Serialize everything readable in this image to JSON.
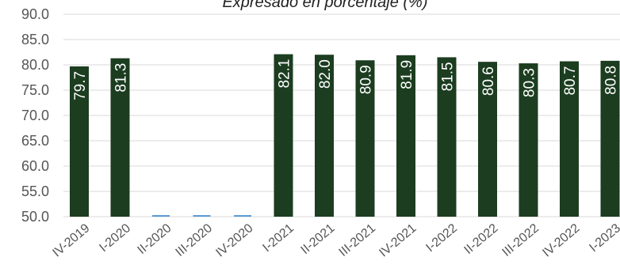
{
  "chart_data": {
    "type": "bar",
    "title": "Expresado en porcentaje (%)",
    "xlabel": "",
    "ylabel": "",
    "ylim": [
      50,
      90
    ],
    "yticks": [
      "50.0",
      "55.0",
      "60.0",
      "65.0",
      "70.0",
      "75.0",
      "80.0",
      "85.0",
      "90.0"
    ],
    "grid": true,
    "categories": [
      "IV-2019",
      "I-2020",
      "II-2020",
      "III-2020",
      "IV-2020",
      "I-2021",
      "II-2021",
      "III-2021",
      "IV-2021",
      "I-2022",
      "II-2022",
      "III-2022",
      "IV-2022",
      "I-2023"
    ],
    "values": [
      79.7,
      81.3,
      null,
      null,
      null,
      82.1,
      82.0,
      80.9,
      81.9,
      81.5,
      80.6,
      80.3,
      80.7,
      80.8
    ],
    "data_labels": [
      "79.7",
      "81.3",
      "",
      "",
      "",
      "82.1",
      "82.0",
      "80.9",
      "81.9",
      "81.5",
      "80.6",
      "80.3",
      "80.7",
      "80.8"
    ],
    "colors": {
      "bar": "#1c3d20",
      "missing_marker": "#5b9bd5"
    }
  }
}
